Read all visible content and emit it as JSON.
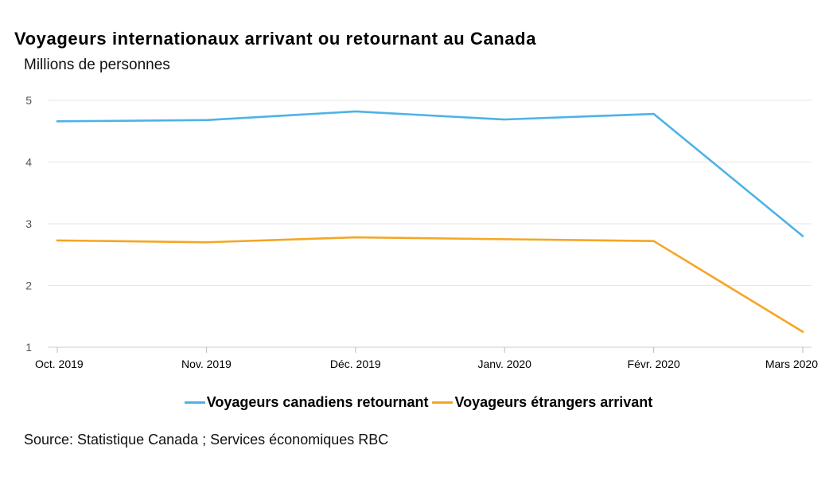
{
  "chart": {
    "title": "Voyageurs internationaux arrivant ou retournant au Canada",
    "subtitle": "Millions de personnes",
    "source": "Source: Statistique Canada ; Services économiques RBC"
  },
  "chart_data": {
    "type": "line",
    "title": "Voyageurs internationaux arrivant ou retournant au Canada",
    "ylabel": "Millions de personnes",
    "xlabel": "",
    "categories": [
      "Oct. 2019",
      "Nov. 2019",
      "Déc. 2019",
      "Janv. 2020",
      "Févr. 2020",
      "Mars 2020"
    ],
    "ylim": [
      1,
      5
    ],
    "yticks": [
      1,
      2,
      3,
      4,
      5
    ],
    "grid": true,
    "legend_position": "bottom",
    "series": [
      {
        "name": "Voyageurs canadiens retournant",
        "color": "#4db3e6",
        "values": [
          4.66,
          4.68,
          4.82,
          4.69,
          4.78,
          2.8
        ]
      },
      {
        "name": "Voyageurs étrangers arrivant",
        "color": "#f5a623",
        "values": [
          2.73,
          2.7,
          2.78,
          2.75,
          2.72,
          1.25
        ]
      }
    ]
  }
}
